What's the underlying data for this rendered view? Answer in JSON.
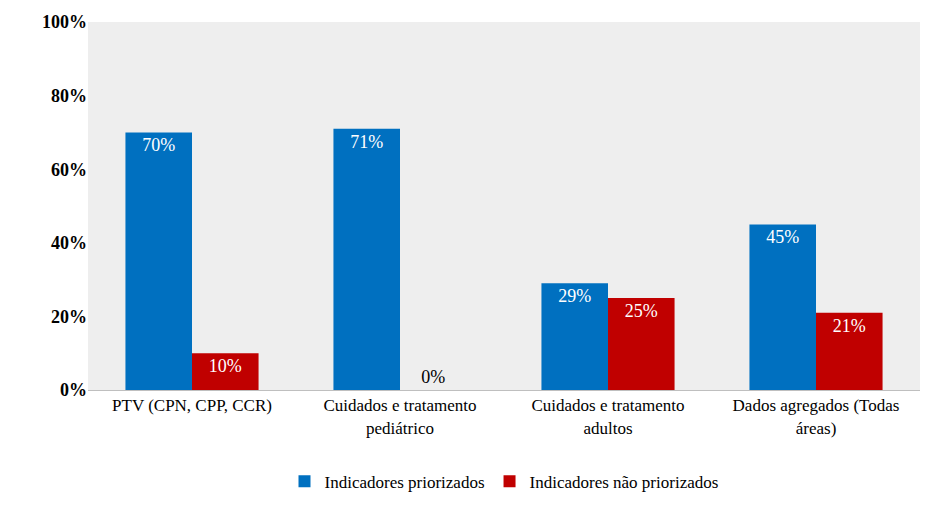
{
  "chart_data": {
    "type": "bar",
    "categories": [
      "PTV (CPN, CPP, CCR)",
      "Cuidados e tratamento pediátrico",
      "Cuidados e tratamento adultos",
      "Dados agregados (Todas áreas)"
    ],
    "series": [
      {
        "name": "Indicadores priorizados",
        "color": "#0070c0",
        "values": [
          70,
          71,
          29,
          45
        ],
        "value_labels": [
          "70%",
          "71%",
          "29%",
          "45%"
        ]
      },
      {
        "name": "Indicadores não priorizados",
        "color": "#c00000",
        "values": [
          10,
          0,
          25,
          21
        ],
        "value_labels": [
          "10%",
          "0%",
          "25%",
          "21%"
        ]
      }
    ],
    "ylim": [
      0,
      100
    ],
    "yticks": [
      {
        "value": 0,
        "label": "0%"
      },
      {
        "value": 20,
        "label": "20%"
      },
      {
        "value": 40,
        "label": "40%"
      },
      {
        "value": 60,
        "label": "60%"
      },
      {
        "value": 80,
        "label": "80%"
      },
      {
        "value": 100,
        "label": "100%"
      }
    ],
    "grid": false,
    "legend": "bottom",
    "data_labels": true
  }
}
